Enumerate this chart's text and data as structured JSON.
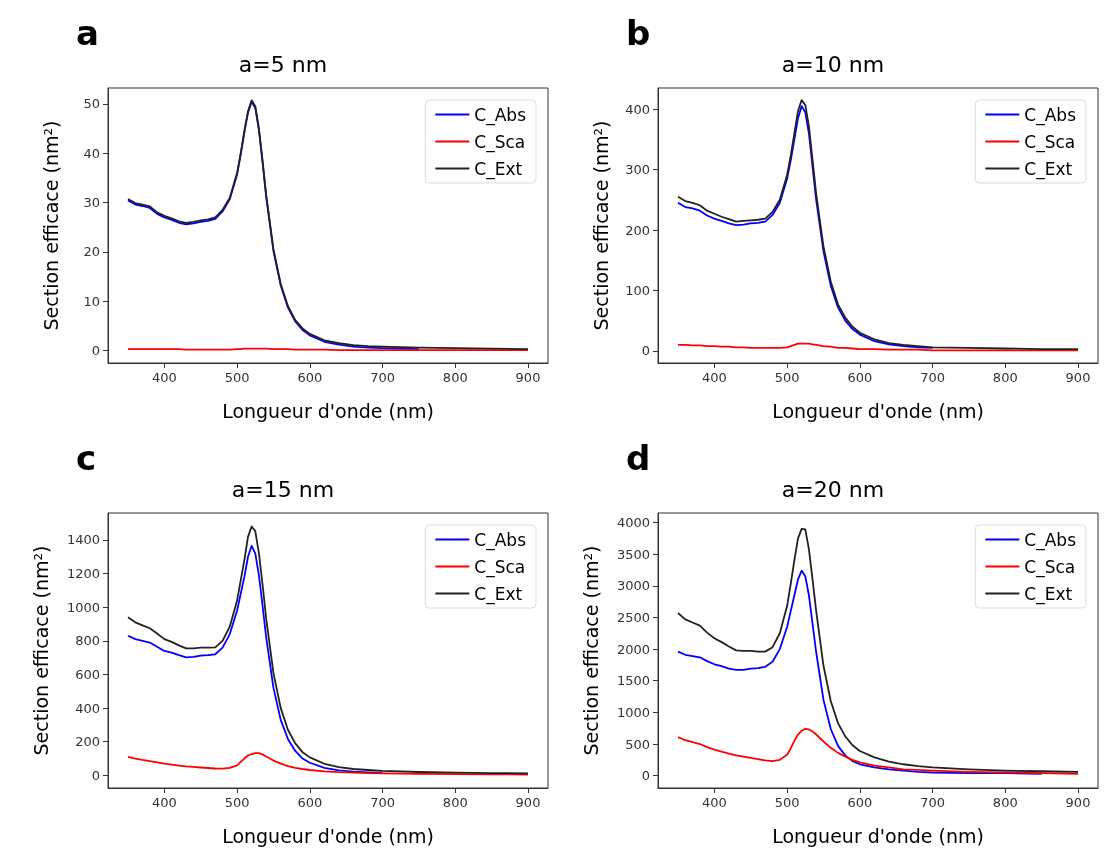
{
  "chart_data": [
    {
      "type": "line",
      "title": "a=5 nm",
      "xlabel": "Longueur d'onde (nm)",
      "ylabel": "Section efficace (nm²)",
      "annotations": [
        "a"
      ],
      "legend": "top right",
      "x": [
        350,
        360,
        370,
        380,
        390,
        400,
        410,
        420,
        430,
        440,
        450,
        460,
        470,
        480,
        490,
        500,
        505,
        510,
        515,
        520,
        525,
        530,
        535,
        540,
        550,
        560,
        570,
        580,
        590,
        600,
        620,
        640,
        660,
        680,
        700,
        750,
        800,
        850,
        900
      ],
      "xlim": [
        322.5,
        927.5
      ],
      "xticks": [
        400,
        500,
        600,
        700,
        800,
        900
      ],
      "ylim": [
        -2.5,
        53.2
      ],
      "yticks": [
        0,
        10,
        20,
        30,
        40,
        50
      ],
      "series": [
        {
          "name": "C_Abs",
          "color": "#0000ff",
          "values": [
            30.4,
            29.6,
            29.3,
            28.9,
            27.7,
            27.0,
            26.5,
            25.9,
            25.6,
            25.8,
            26.1,
            26.3,
            26.7,
            28.2,
            30.7,
            35.7,
            39.7,
            44.2,
            48.2,
            50.4,
            49.2,
            44.7,
            38.2,
            31.2,
            20.2,
            13.2,
            8.7,
            5.9,
            4.2,
            3.1,
            1.8,
            1.2,
            0.8,
            0.6,
            0.5,
            0.3,
            null,
            null,
            null
          ]
        },
        {
          "name": "C_Sca",
          "color": "#ff0000",
          "values": [
            0.3,
            0.3,
            0.3,
            0.3,
            0.3,
            0.3,
            0.3,
            0.3,
            0.2,
            0.2,
            0.2,
            0.2,
            0.2,
            0.2,
            0.2,
            0.3,
            0.3,
            0.4,
            0.4,
            0.4,
            0.4,
            0.4,
            0.4,
            0.4,
            0.3,
            0.3,
            0.3,
            0.2,
            0.2,
            0.2,
            0.2,
            0.1,
            0.1,
            0.1,
            0.1,
            0.1,
            0.1,
            0.1,
            0.1
          ]
        },
        {
          "name": "C_Ext",
          "color": "#222222",
          "values": [
            30.7,
            29.9,
            29.6,
            29.2,
            28.0,
            27.3,
            26.8,
            26.2,
            25.9,
            26.1,
            26.4,
            26.6,
            27.0,
            28.5,
            31.0,
            36.0,
            40.0,
            44.5,
            48.5,
            50.7,
            49.5,
            45.0,
            38.5,
            31.5,
            20.5,
            13.5,
            9.0,
            6.2,
            4.5,
            3.4,
            2.1,
            1.5,
            1.1,
            0.9,
            0.8,
            0.6,
            0.5,
            0.4,
            0.3
          ]
        }
      ]
    },
    {
      "type": "line",
      "title": "a=10 nm",
      "xlabel": "Longueur d'onde (nm)",
      "ylabel": "Section efficace (nm²)",
      "annotations": [
        "b"
      ],
      "legend": "top right",
      "x": [
        350,
        360,
        370,
        380,
        390,
        400,
        410,
        420,
        430,
        440,
        450,
        460,
        470,
        480,
        490,
        500,
        505,
        510,
        515,
        520,
        525,
        530,
        535,
        540,
        550,
        560,
        570,
        580,
        590,
        600,
        620,
        640,
        660,
        680,
        700,
        750,
        800,
        850,
        900
      ],
      "xlim": [
        322.5,
        927.5
      ],
      "xticks": [
        400,
        500,
        600,
        700,
        800,
        900
      ],
      "ylim": [
        -20,
        435
      ],
      "yticks": [
        0,
        100,
        200,
        300,
        400
      ],
      "series": [
        {
          "name": "C_Abs",
          "color": "#0000ff",
          "values": [
            245,
            238,
            236,
            232,
            224,
            219,
            215,
            211,
            208,
            209,
            211,
            212,
            214,
            225,
            245,
            285,
            315,
            350,
            385,
            405,
            395,
            360,
            305,
            250,
            165,
            108,
            72,
            50,
            36,
            27,
            16,
            11,
            8,
            6,
            5,
            null,
            null,
            null,
            null
          ]
        },
        {
          "name": "C_Sca",
          "color": "#ff0000",
          "values": [
            10,
            10,
            9,
            9,
            8,
            8,
            7,
            7,
            6,
            6,
            5,
            5,
            5,
            5,
            5,
            6,
            8,
            10,
            12,
            12,
            12,
            12,
            11,
            10,
            8,
            7,
            5,
            5,
            4,
            3,
            3,
            2,
            2,
            2,
            1,
            1,
            1,
            1,
            1
          ]
        },
        {
          "name": "C_Ext",
          "color": "#222222",
          "values": [
            255,
            248,
            245,
            241,
            232,
            227,
            222,
            218,
            214,
            215,
            216,
            217,
            219,
            230,
            250,
            291,
            323,
            360,
            397,
            415,
            407,
            372,
            316,
            260,
            173,
            115,
            77,
            55,
            40,
            30,
            19,
            13,
            10,
            8,
            6,
            5,
            4,
            3,
            3
          ]
        }
      ]
    },
    {
      "type": "line",
      "title": "a=15 nm",
      "xlabel": "Longueur d'onde (nm)",
      "ylabel": "Section efficace (nm²)",
      "annotations": [
        "c"
      ],
      "legend": "top right",
      "x": [
        350,
        360,
        370,
        380,
        390,
        400,
        410,
        420,
        430,
        440,
        450,
        460,
        470,
        480,
        490,
        500,
        505,
        510,
        515,
        520,
        525,
        530,
        535,
        540,
        550,
        560,
        570,
        580,
        590,
        600,
        620,
        640,
        660,
        680,
        700,
        750,
        800,
        850,
        900
      ],
      "xlim": [
        322.5,
        927.5
      ],
      "xticks": [
        400,
        500,
        600,
        700,
        800,
        900
      ],
      "ylim": [
        -75,
        1560
      ],
      "yticks": [
        0,
        200,
        400,
        600,
        800,
        1000,
        1200,
        1400
      ],
      "series": [
        {
          "name": "C_Abs",
          "color": "#0000ff",
          "values": [
            830,
            810,
            800,
            790,
            765,
            740,
            730,
            715,
            702,
            705,
            712,
            715,
            720,
            760,
            840,
            980,
            1080,
            1180,
            1300,
            1365,
            1320,
            1190,
            1010,
            820,
            520,
            330,
            215,
            145,
            100,
            75,
            45,
            30,
            22,
            18,
            15,
            null,
            null,
            null,
            null
          ]
        },
        {
          "name": "C_Sca",
          "color": "#ff0000",
          "values": [
            110,
            100,
            92,
            85,
            78,
            70,
            64,
            58,
            53,
            50,
            47,
            44,
            41,
            40,
            45,
            60,
            80,
            100,
            118,
            127,
            132,
            132,
            125,
            112,
            88,
            70,
            55,
            45,
            38,
            32,
            24,
            19,
            16,
            14,
            12,
            9,
            7,
            6,
            5
          ]
        },
        {
          "name": "C_Ext",
          "color": "#222222",
          "values": [
            940,
            910,
            892,
            875,
            843,
            810,
            794,
            773,
            755,
            755,
            759,
            759,
            761,
            800,
            885,
            1040,
            1160,
            1280,
            1418,
            1480,
            1452,
            1322,
            1135,
            932,
            608,
            400,
            270,
            190,
            138,
            107,
            69,
            49,
            38,
            32,
            27,
            20,
            16,
            14,
            12
          ]
        }
      ]
    },
    {
      "type": "line",
      "title": "a=20 nm",
      "xlabel": "Longueur d'onde (nm)",
      "ylabel": "Section efficace (nm²)",
      "annotations": [
        "d"
      ],
      "legend": "top right",
      "x": [
        350,
        360,
        370,
        380,
        390,
        400,
        410,
        420,
        430,
        440,
        450,
        460,
        470,
        480,
        490,
        500,
        505,
        510,
        515,
        520,
        525,
        530,
        535,
        540,
        550,
        560,
        570,
        580,
        590,
        600,
        620,
        640,
        660,
        680,
        700,
        750,
        800,
        850,
        900
      ],
      "xlim": [
        322.5,
        927.5
      ],
      "xticks": [
        400,
        500,
        600,
        700,
        800,
        900
      ],
      "ylim": [
        -195,
        4150
      ],
      "yticks": [
        0,
        500,
        1000,
        1500,
        2000,
        2500,
        3000,
        3500,
        4000
      ],
      "series": [
        {
          "name": "C_Abs",
          "color": "#0000ff",
          "values": [
            1960,
            1910,
            1890,
            1870,
            1810,
            1760,
            1730,
            1690,
            1670,
            1670,
            1690,
            1700,
            1720,
            1800,
            2000,
            2350,
            2600,
            2850,
            3100,
            3240,
            3150,
            2850,
            2400,
            1950,
            1200,
            740,
            470,
            320,
            230,
            180,
            130,
            100,
            80,
            60,
            50,
            40,
            40,
            30,
            null
          ]
        },
        {
          "name": "C_Sca",
          "color": "#ff0000",
          "values": [
            610,
            560,
            530,
            500,
            450,
            410,
            380,
            350,
            320,
            300,
            280,
            260,
            240,
            230,
            250,
            330,
            430,
            550,
            650,
            710,
            740,
            730,
            700,
            650,
            540,
            440,
            360,
            300,
            250,
            210,
            160,
            130,
            100,
            90,
            80,
            60,
            50,
            40,
            30
          ]
        },
        {
          "name": "C_Ext",
          "color": "#222222",
          "values": [
            2570,
            2470,
            2420,
            2370,
            2260,
            2170,
            2110,
            2040,
            1980,
            1970,
            1970,
            1960,
            1960,
            2030,
            2250,
            2680,
            3030,
            3400,
            3750,
            3900,
            3890,
            3580,
            3100,
            2600,
            1740,
            1180,
            830,
            620,
            480,
            390,
            290,
            220,
            180,
            150,
            130,
            100,
            80,
            70,
            60
          ]
        }
      ]
    }
  ]
}
